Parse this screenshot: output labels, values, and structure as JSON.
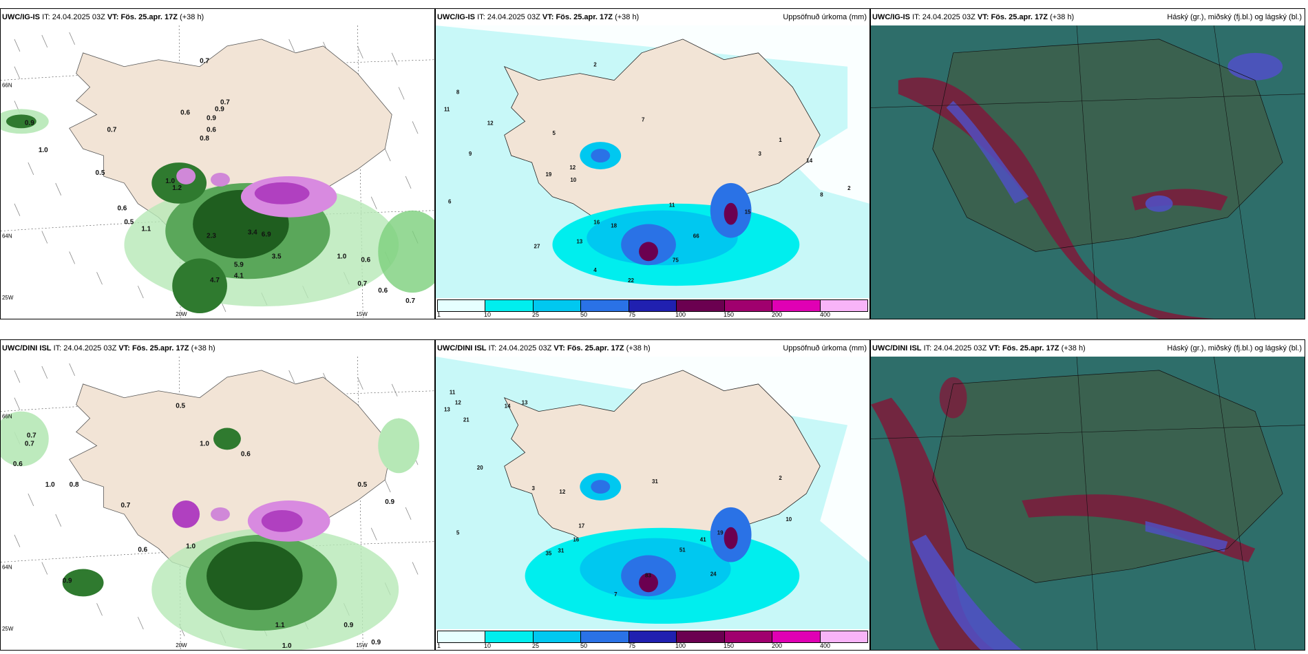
{
  "panels": [
    {
      "id": "p1",
      "model": "UWC/IG-IS",
      "it_label": "IT:",
      "it": "24.04.2025 03Z",
      "vt_label": "VT:",
      "vt": "Fös. 25.apr. 17Z",
      "lead": "(+38 h)",
      "field": ""
    },
    {
      "id": "p2",
      "model": "UWC/IG-IS",
      "it_label": "IT:",
      "it": "24.04.2025 03Z",
      "vt_label": "VT:",
      "vt": "Fös. 25.apr. 17Z",
      "lead": "(+38 h)",
      "field": "Uppsöfnuð úrkoma (mm)"
    },
    {
      "id": "p3",
      "model": "UWC/IG-IS",
      "it_label": "IT:",
      "it": "24.04.2025 03Z",
      "vt_label": "VT:",
      "vt": "Fös. 25.apr. 17Z",
      "lead": "(+38 h)",
      "field": "Háský (gr.), miðský (fj.bl.) og lágský (bl.)"
    },
    {
      "id": "p4",
      "model": "UWC/DINI ISL",
      "it_label": "IT:",
      "it": "24.04.2025 03Z",
      "vt_label": "VT:",
      "vt": "Fös. 25.apr. 17Z",
      "lead": "(+38 h)",
      "field": ""
    },
    {
      "id": "p5",
      "model": "UWC/DINI ISL",
      "it_label": "IT:",
      "it": "24.04.2025 03Z",
      "vt_label": "VT:",
      "vt": "Fös. 25.apr. 17Z",
      "lead": "(+38 h)",
      "field": "Uppsöfnuð úrkoma (mm)"
    },
    {
      "id": "p6",
      "model": "UWC/DINI ISL",
      "it_label": "IT:",
      "it": "24.04.2025 03Z",
      "vt_label": "VT:",
      "vt": "Fös. 25.apr. 17Z",
      "lead": "(+38 h)",
      "field": "Háský (gr.), miðský (fj.bl.) og lágský (bl.)"
    }
  ],
  "axis_labels": {
    "lon_20": "20W",
    "lon_15": "15W",
    "lat_66": "66N",
    "lat_64": "64N",
    "lat_25w": "25W"
  },
  "colorbar": {
    "labels": [
      "1",
      "10",
      "25",
      "50",
      "75",
      "100",
      "150",
      "200",
      "400"
    ],
    "colors": [
      "#e6ffff",
      "#00eeee",
      "#00c8f0",
      "#2a72e6",
      "#2020b0",
      "#6b0050",
      "#a0006e",
      "#e000b4",
      "#f8b4f8"
    ]
  },
  "top_precip_labels": [
    "0.7",
    "0.6",
    "0.9",
    "0.7",
    "0.9",
    "0.8",
    "0.6",
    "0.5",
    "1.0",
    "0.7",
    "0.9",
    "1.0",
    "1.2",
    "0.6",
    "0.5",
    "1.1",
    "2.3",
    "3.5",
    "4.1",
    "4.7",
    "5.9",
    "6.9",
    "3.4",
    "1.0",
    "0.6",
    "0.7",
    "0.6",
    "0.7"
  ],
  "mid_precip_labels": [
    "2",
    "8",
    "11",
    "12",
    "6",
    "9",
    "5",
    "7",
    "16",
    "19",
    "12",
    "10",
    "27",
    "13",
    "4",
    "22",
    "75",
    "66",
    "15",
    "18",
    "11",
    "3",
    "1",
    "14",
    "8",
    "2"
  ],
  "bottom_precip_labels": [
    "0.5",
    "0.7",
    "0.6",
    "1.0",
    "0.8",
    "0.7",
    "1.0",
    "0.6",
    "0.9",
    "0.6",
    "1.0",
    "0.5",
    "0.9",
    "0.9",
    "1.1",
    "1.0",
    "0.9",
    "0.7"
  ],
  "bottom_mid_labels": [
    "13",
    "11",
    "12",
    "21",
    "14",
    "13",
    "20",
    "5",
    "35",
    "31",
    "16",
    "17",
    "12",
    "83",
    "31",
    "51",
    "24",
    "41",
    "19",
    "10",
    "7",
    "3",
    "2"
  ],
  "colors": {
    "land": "#f2e4d6",
    "cloud_high": "#7a1e3c",
    "cloud_mid": "#5050c8",
    "cloud_low": "#2e6e6a",
    "ocean_cloud": "#1e5e5e"
  }
}
